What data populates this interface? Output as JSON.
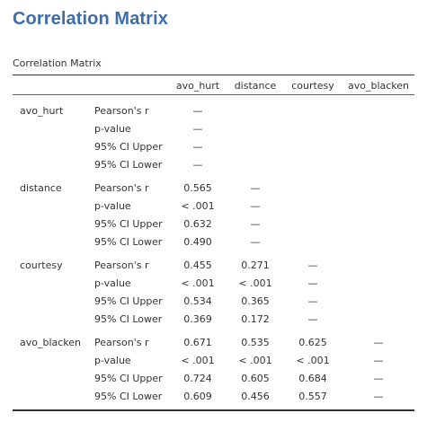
{
  "page_title": "Correlation Matrix",
  "table": {
    "caption": "Correlation Matrix",
    "columns": [
      "avo_hurt",
      "distance",
      "courtesy",
      "avo_blacken"
    ],
    "rows": [
      {
        "variable": "avo_hurt",
        "stats": [
          {
            "label": "Pearson's r",
            "values": [
              "—",
              "",
              "",
              ""
            ]
          },
          {
            "label": "p-value",
            "values": [
              "—",
              "",
              "",
              ""
            ]
          },
          {
            "label": "95% CI Upper",
            "values": [
              "—",
              "",
              "",
              ""
            ]
          },
          {
            "label": "95% CI Lower",
            "values": [
              "—",
              "",
              "",
              ""
            ]
          }
        ]
      },
      {
        "variable": "distance",
        "stats": [
          {
            "label": "Pearson's r",
            "values": [
              "0.565",
              "—",
              "",
              ""
            ]
          },
          {
            "label": "p-value",
            "values": [
              "< .001",
              "—",
              "",
              ""
            ]
          },
          {
            "label": "95% CI Upper",
            "values": [
              "0.632",
              "—",
              "",
              ""
            ]
          },
          {
            "label": "95% CI Lower",
            "values": [
              "0.490",
              "—",
              "",
              ""
            ]
          }
        ]
      },
      {
        "variable": "courtesy",
        "stats": [
          {
            "label": "Pearson's r",
            "values": [
              "0.455",
              "0.271",
              "—",
              ""
            ]
          },
          {
            "label": "p-value",
            "values": [
              "< .001",
              "< .001",
              "—",
              ""
            ]
          },
          {
            "label": "95% CI Upper",
            "values": [
              "0.534",
              "0.365",
              "—",
              ""
            ]
          },
          {
            "label": "95% CI Lower",
            "values": [
              "0.369",
              "0.172",
              "—",
              ""
            ]
          }
        ]
      },
      {
        "variable": "avo_blacken",
        "stats": [
          {
            "label": "Pearson's r",
            "values": [
              "0.671",
              "0.535",
              "0.625",
              "—"
            ]
          },
          {
            "label": "p-value",
            "values": [
              "< .001",
              "< .001",
              "< .001",
              "—"
            ]
          },
          {
            "label": "95% CI Upper",
            "values": [
              "0.724",
              "0.605",
              "0.684",
              "—"
            ]
          },
          {
            "label": "95% CI Lower",
            "values": [
              "0.609",
              "0.456",
              "0.557",
              "—"
            ]
          }
        ]
      }
    ]
  }
}
